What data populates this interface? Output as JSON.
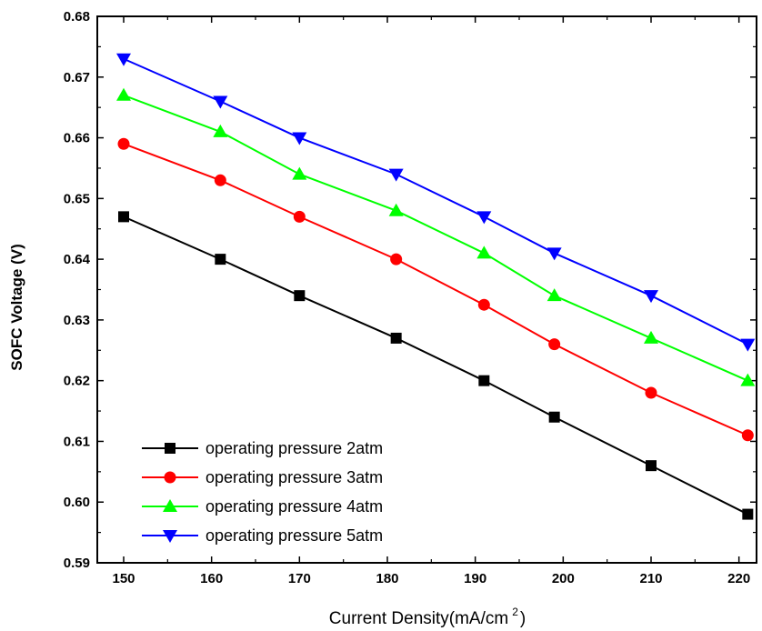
{
  "chart_data": {
    "type": "line",
    "xlabel_main": "Current Density(mA/cm",
    "xlabel_sup": "2",
    "xlabel_end": ")",
    "ylabel": "SOFC Voltage (V)",
    "xlim": [
      147,
      222
    ],
    "ylim": [
      0.59,
      0.68
    ],
    "x_ticks": [
      150,
      160,
      170,
      180,
      190,
      200,
      210,
      220
    ],
    "y_ticks": [
      0.59,
      0.6,
      0.61,
      0.62,
      0.63,
      0.64,
      0.65,
      0.66,
      0.67,
      0.68
    ],
    "x_tick_labels": [
      "150",
      "160",
      "170",
      "180",
      "190",
      "200",
      "210",
      "220"
    ],
    "y_tick_labels": [
      "0.59",
      "0.60",
      "0.61",
      "0.62",
      "0.63",
      "0.64",
      "0.65",
      "0.66",
      "0.67",
      "0.68"
    ],
    "x": [
      150,
      161,
      170,
      181,
      191,
      199,
      210,
      221
    ],
    "legend_position": "lower-left",
    "series": [
      {
        "name": "operating pressure 2atm",
        "color": "#000000",
        "marker": "square",
        "values": [
          0.647,
          0.64,
          0.634,
          0.627,
          0.62,
          0.614,
          0.606,
          0.598
        ]
      },
      {
        "name": "operating pressure 3atm",
        "color": "#ff0000",
        "marker": "circle",
        "values": [
          0.659,
          0.653,
          0.647,
          0.64,
          0.6325,
          0.626,
          0.618,
          0.611
        ]
      },
      {
        "name": "operating pressure 4atm",
        "color": "#00ff00",
        "marker": "triangle-up",
        "values": [
          0.667,
          0.661,
          0.654,
          0.648,
          0.641,
          0.634,
          0.627,
          0.62
        ]
      },
      {
        "name": "operating pressure 5atm",
        "color": "#0000ff",
        "marker": "triangle-down",
        "values": [
          0.673,
          0.666,
          0.66,
          0.654,
          0.647,
          0.641,
          0.634,
          0.626
        ]
      }
    ]
  }
}
